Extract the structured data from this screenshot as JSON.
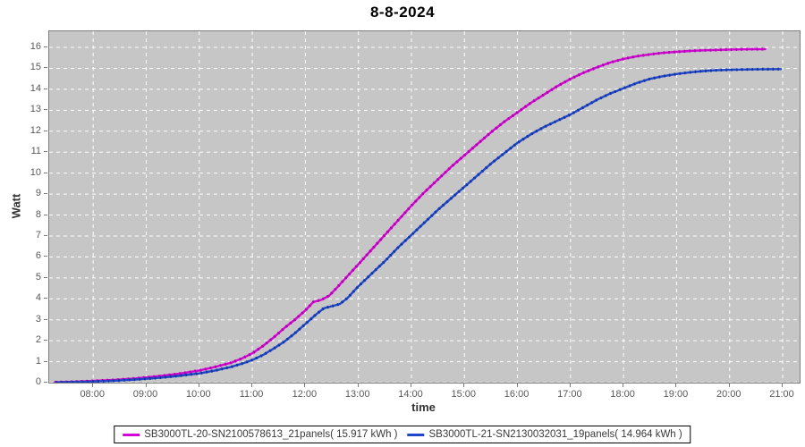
{
  "title": "8-8-2024",
  "chart_data": {
    "type": "line",
    "title": "8-8-2024",
    "xlabel": "time",
    "ylabel": "Watt",
    "xlim_hours": [
      7.17,
      21.32
    ],
    "ylim": [
      0,
      16.77
    ],
    "grid": true,
    "legend_position": "bottom",
    "colors": {
      "plot_background": "#c6c6c6",
      "gridline": "#ffffff",
      "plot_border": "#7d7d7d",
      "tick_text": "#585858"
    },
    "x_ticks": {
      "hours": [
        8,
        9,
        10,
        11,
        12,
        13,
        14,
        15,
        16,
        17,
        18,
        19,
        20,
        21
      ],
      "labels": [
        "08:00",
        "09:00",
        "10:00",
        "11:00",
        "12:00",
        "13:00",
        "14:00",
        "15:00",
        "16:00",
        "17:00",
        "18:00",
        "19:00",
        "20:00",
        "21:00"
      ]
    },
    "y_ticks": [
      0,
      1,
      2,
      3,
      4,
      5,
      6,
      7,
      8,
      9,
      10,
      11,
      12,
      13,
      14,
      15,
      16
    ],
    "series": [
      {
        "name": "SB3000TL-20-SN2100578613_21panels( 15.917 kWh )",
        "total_kwh": 15.917,
        "color": "#d502d5",
        "marker_color": "#a800a8",
        "points": [
          [
            7.28,
            0.02
          ],
          [
            7.6,
            0.04
          ],
          [
            8.0,
            0.08
          ],
          [
            8.4,
            0.13
          ],
          [
            8.8,
            0.2
          ],
          [
            9.2,
            0.3
          ],
          [
            9.6,
            0.42
          ],
          [
            10.0,
            0.58
          ],
          [
            10.3,
            0.75
          ],
          [
            10.6,
            0.95
          ],
          [
            10.8,
            1.15
          ],
          [
            11.0,
            1.4
          ],
          [
            11.2,
            1.75
          ],
          [
            11.4,
            2.15
          ],
          [
            11.6,
            2.6
          ],
          [
            11.8,
            3.0
          ],
          [
            12.0,
            3.45
          ],
          [
            12.15,
            3.85
          ],
          [
            12.3,
            3.95
          ],
          [
            12.45,
            4.15
          ],
          [
            12.6,
            4.55
          ],
          [
            12.8,
            5.1
          ],
          [
            13.0,
            5.65
          ],
          [
            13.25,
            6.35
          ],
          [
            13.5,
            7.05
          ],
          [
            13.75,
            7.75
          ],
          [
            14.0,
            8.45
          ],
          [
            14.25,
            9.1
          ],
          [
            14.5,
            9.7
          ],
          [
            14.75,
            10.3
          ],
          [
            15.0,
            10.85
          ],
          [
            15.25,
            11.4
          ],
          [
            15.5,
            11.95
          ],
          [
            15.75,
            12.45
          ],
          [
            16.0,
            12.9
          ],
          [
            16.25,
            13.35
          ],
          [
            16.5,
            13.75
          ],
          [
            16.75,
            14.15
          ],
          [
            17.0,
            14.5
          ],
          [
            17.25,
            14.8
          ],
          [
            17.5,
            15.05
          ],
          [
            17.75,
            15.28
          ],
          [
            18.0,
            15.45
          ],
          [
            18.25,
            15.58
          ],
          [
            18.5,
            15.67
          ],
          [
            18.75,
            15.74
          ],
          [
            19.0,
            15.79
          ],
          [
            19.25,
            15.83
          ],
          [
            19.5,
            15.86
          ],
          [
            19.75,
            15.88
          ],
          [
            20.0,
            15.9
          ],
          [
            20.25,
            15.91
          ],
          [
            20.45,
            15.915
          ],
          [
            20.67,
            15.917
          ]
        ]
      },
      {
        "name": "SB3000TL-21-SN2130032031_19panels( 14.964 kWh )",
        "total_kwh": 14.964,
        "color": "#1e46c8",
        "marker_color": "#1232a0",
        "points": [
          [
            7.3,
            0.01
          ],
          [
            7.7,
            0.03
          ],
          [
            8.0,
            0.05
          ],
          [
            8.4,
            0.09
          ],
          [
            8.8,
            0.15
          ],
          [
            9.2,
            0.22
          ],
          [
            9.6,
            0.32
          ],
          [
            10.0,
            0.44
          ],
          [
            10.3,
            0.58
          ],
          [
            10.6,
            0.75
          ],
          [
            10.8,
            0.9
          ],
          [
            11.0,
            1.08
          ],
          [
            11.2,
            1.32
          ],
          [
            11.4,
            1.62
          ],
          [
            11.6,
            1.95
          ],
          [
            11.8,
            2.35
          ],
          [
            12.0,
            2.8
          ],
          [
            12.2,
            3.25
          ],
          [
            12.35,
            3.55
          ],
          [
            12.5,
            3.65
          ],
          [
            12.65,
            3.75
          ],
          [
            12.8,
            4.05
          ],
          [
            13.0,
            4.6
          ],
          [
            13.25,
            5.2
          ],
          [
            13.5,
            5.8
          ],
          [
            13.75,
            6.45
          ],
          [
            14.0,
            7.05
          ],
          [
            14.25,
            7.65
          ],
          [
            14.5,
            8.25
          ],
          [
            14.75,
            8.8
          ],
          [
            15.0,
            9.35
          ],
          [
            15.25,
            9.9
          ],
          [
            15.5,
            10.45
          ],
          [
            15.75,
            10.95
          ],
          [
            16.0,
            11.45
          ],
          [
            16.25,
            11.85
          ],
          [
            16.5,
            12.2
          ],
          [
            16.75,
            12.5
          ],
          [
            17.0,
            12.8
          ],
          [
            17.25,
            13.15
          ],
          [
            17.5,
            13.5
          ],
          [
            17.75,
            13.8
          ],
          [
            18.0,
            14.05
          ],
          [
            18.25,
            14.3
          ],
          [
            18.5,
            14.5
          ],
          [
            18.75,
            14.63
          ],
          [
            19.0,
            14.73
          ],
          [
            19.25,
            14.81
          ],
          [
            19.5,
            14.87
          ],
          [
            19.75,
            14.91
          ],
          [
            20.0,
            14.93
          ],
          [
            20.3,
            14.95
          ],
          [
            20.6,
            14.96
          ],
          [
            20.97,
            14.964
          ]
        ]
      }
    ]
  }
}
